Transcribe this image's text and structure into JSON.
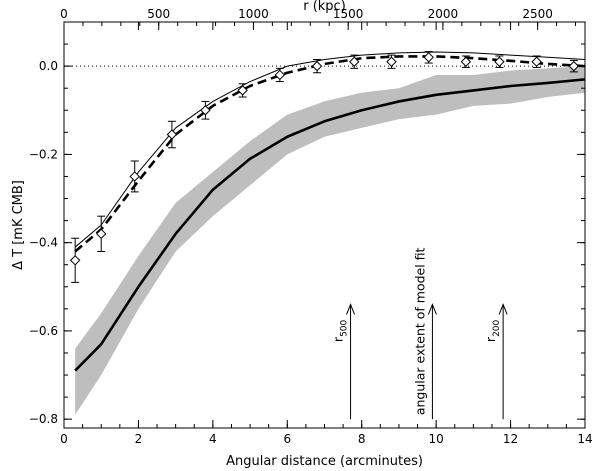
{
  "chart_data": {
    "type": "line",
    "title": "",
    "xlabel": "Angular distance (arcminutes)",
    "ylabel": "Δ T [mK CMB]",
    "x2label": "r (kpc)",
    "xlim": [
      0,
      14
    ],
    "ylim": [
      -0.82,
      0.1
    ],
    "x2lim": [
      0,
      2750
    ],
    "xticks": [
      0,
      2,
      4,
      6,
      8,
      10,
      12,
      14
    ],
    "yticks": [
      -0.8,
      -0.6,
      -0.4,
      -0.2,
      0.0
    ],
    "ytick_labels": [
      "−0.8",
      "−0.6",
      "−0.4",
      "−0.2",
      "0.0"
    ],
    "x2ticks": [
      0,
      500,
      1000,
      1500,
      2000,
      2500
    ],
    "grid": false,
    "series": [
      {
        "name": "",
        "kind": "points_with_errorbars",
        "marker": "diamond",
        "x": [
          0.3,
          1.0,
          1.9,
          2.9,
          3.8,
          4.8,
          5.8,
          6.8,
          7.8,
          8.8,
          9.8,
          10.8,
          11.7,
          12.7,
          13.7
        ],
        "y": [
          -0.44,
          -0.38,
          -0.25,
          -0.155,
          -0.1,
          -0.055,
          -0.02,
          0.0,
          0.01,
          0.01,
          0.02,
          0.01,
          0.01,
          0.01,
          0.0
        ],
        "err": [
          0.05,
          0.04,
          0.035,
          0.03,
          0.02,
          0.015,
          0.015,
          0.015,
          0.015,
          0.015,
          0.013,
          0.013,
          0.013,
          0.013,
          0.013
        ]
      },
      {
        "name": "",
        "kind": "line",
        "style": "thin-solid",
        "x": [
          0.3,
          1,
          2,
          3,
          4,
          5,
          6,
          7,
          8,
          9,
          10,
          11,
          12,
          13,
          14
        ],
        "y": [
          -0.41,
          -0.36,
          -0.24,
          -0.14,
          -0.08,
          -0.035,
          0.0,
          0.015,
          0.025,
          0.03,
          0.032,
          0.03,
          0.025,
          0.02,
          0.015
        ]
      },
      {
        "name": "",
        "kind": "line",
        "style": "thick-dashed",
        "x": [
          0.3,
          1,
          2,
          3,
          4,
          5,
          6,
          7,
          8,
          9,
          10,
          11,
          12,
          13,
          14
        ],
        "y": [
          -0.42,
          -0.37,
          -0.26,
          -0.155,
          -0.09,
          -0.045,
          -0.015,
          0.005,
          0.018,
          0.022,
          0.022,
          0.018,
          0.012,
          0.005,
          0.0
        ]
      },
      {
        "name": "",
        "kind": "line",
        "style": "thick-solid",
        "x": [
          0.3,
          1,
          2,
          3,
          4,
          5,
          6,
          7,
          8,
          9,
          10,
          11,
          12,
          13,
          14
        ],
        "y": [
          -0.69,
          -0.63,
          -0.5,
          -0.38,
          -0.28,
          -0.21,
          -0.16,
          -0.125,
          -0.1,
          -0.08,
          -0.065,
          -0.055,
          -0.045,
          -0.038,
          -0.03
        ]
      },
      {
        "name": "",
        "kind": "band",
        "color": "#bebebe",
        "x": [
          0.3,
          1,
          2,
          3,
          4,
          5,
          6,
          7,
          8,
          9,
          10,
          11,
          12,
          13,
          14
        ],
        "upper": [
          -0.64,
          -0.56,
          -0.43,
          -0.31,
          -0.24,
          -0.17,
          -0.11,
          -0.08,
          -0.06,
          -0.05,
          -0.02,
          -0.02,
          -0.01,
          -0.005,
          0.0
        ],
        "lower": [
          -0.79,
          -0.7,
          -0.55,
          -0.42,
          -0.34,
          -0.27,
          -0.2,
          -0.16,
          -0.14,
          -0.12,
          -0.11,
          -0.09,
          -0.085,
          -0.07,
          -0.06
        ]
      }
    ],
    "reference_line": {
      "y": 0.0,
      "style": "dotted"
    },
    "annotations": [
      {
        "kind": "arrow",
        "x": 7.7,
        "y_from": -0.8,
        "y_to": -0.54,
        "label": "r",
        "sub": "500"
      },
      {
        "kind": "arrow",
        "x": 9.9,
        "y_from": -0.8,
        "y_to": -0.54,
        "label": "angular extent of model fit",
        "sub": ""
      },
      {
        "kind": "arrow",
        "x": 11.8,
        "y_from": -0.8,
        "y_to": -0.54,
        "label": "r",
        "sub": "200"
      }
    ]
  }
}
